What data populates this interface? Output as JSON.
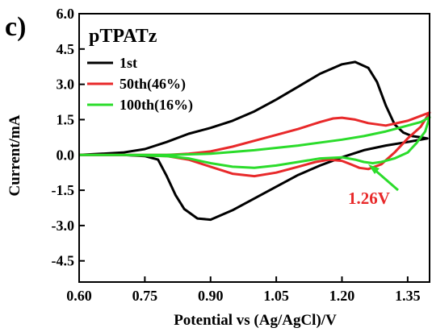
{
  "chart_data": {
    "type": "line",
    "panel_label": "c)",
    "title": "pTPATz",
    "xlabel": "Potential vs (Ag/AgCl)/V",
    "ylabel": "Current/mA",
    "xlim": [
      0.6,
      1.4
    ],
    "ylim": [
      -5.4,
      6.0
    ],
    "xticks": [
      "0.60",
      "0.75",
      "0.90",
      "1.05",
      "1.20",
      "1.35"
    ],
    "yticks": [
      "6.0",
      "4.5",
      "3.0",
      "1.5",
      "0.0",
      "-1.5",
      "-3.0",
      "-4.5"
    ],
    "legend_position": "top-left",
    "annotation": {
      "text": "1.26V",
      "x": 1.26,
      "y": -0.25,
      "color": "#e8292a"
    },
    "series": [
      {
        "name": "1st",
        "color": "#000000",
        "x": [
          0.6,
          0.7,
          0.75,
          0.8,
          0.85,
          0.9,
          0.95,
          1.0,
          1.05,
          1.1,
          1.15,
          1.2,
          1.23,
          1.26,
          1.28,
          1.3,
          1.32,
          1.34,
          1.36,
          1.38,
          1.395,
          1.38,
          1.35,
          1.3,
          1.25,
          1.2,
          1.15,
          1.1,
          1.05,
          1.0,
          0.95,
          0.9,
          0.87,
          0.84,
          0.82,
          0.8,
          0.78,
          0.75,
          0.7,
          0.6
        ],
        "y": [
          0.0,
          0.1,
          0.25,
          0.55,
          0.9,
          1.15,
          1.45,
          1.85,
          2.35,
          2.9,
          3.45,
          3.85,
          3.95,
          3.7,
          3.1,
          2.1,
          1.3,
          0.95,
          0.8,
          0.75,
          0.7,
          0.65,
          0.55,
          0.4,
          0.2,
          -0.1,
          -0.45,
          -0.85,
          -1.35,
          -1.85,
          -2.35,
          -2.75,
          -2.7,
          -2.3,
          -1.7,
          -0.9,
          -0.2,
          -0.05,
          0.0,
          0.0
        ]
      },
      {
        "name": "50th(46%)",
        "color": "#e8292a",
        "x": [
          0.6,
          0.8,
          0.85,
          0.9,
          0.95,
          1.0,
          1.05,
          1.1,
          1.15,
          1.18,
          1.2,
          1.23,
          1.26,
          1.3,
          1.35,
          1.4,
          1.38,
          1.35,
          1.32,
          1.29,
          1.26,
          1.24,
          1.22,
          1.2,
          1.17,
          1.14,
          1.1,
          1.05,
          1.0,
          0.95,
          0.9,
          0.85,
          0.8,
          0.7,
          0.6
        ],
        "y": [
          0.0,
          0.0,
          0.05,
          0.15,
          0.35,
          0.6,
          0.85,
          1.1,
          1.4,
          1.55,
          1.58,
          1.5,
          1.35,
          1.25,
          1.45,
          1.8,
          1.2,
          0.7,
          0.1,
          -0.4,
          -0.6,
          -0.55,
          -0.4,
          -0.25,
          -0.2,
          -0.3,
          -0.5,
          -0.75,
          -0.9,
          -0.8,
          -0.5,
          -0.2,
          -0.05,
          0.0,
          0.0
        ]
      },
      {
        "name": "100th(16%)",
        "color": "#2bdc2b",
        "x": [
          0.6,
          0.8,
          0.9,
          1.0,
          1.1,
          1.2,
          1.25,
          1.3,
          1.35,
          1.38,
          1.4,
          1.39,
          1.37,
          1.35,
          1.32,
          1.29,
          1.27,
          1.25,
          1.23,
          1.2,
          1.15,
          1.1,
          1.05,
          1.0,
          0.95,
          0.9,
          0.85,
          0.8,
          0.7,
          0.6
        ],
        "y": [
          0.0,
          0.0,
          0.05,
          0.2,
          0.4,
          0.65,
          0.8,
          1.0,
          1.25,
          1.4,
          1.6,
          1.0,
          0.5,
          0.1,
          -0.15,
          -0.3,
          -0.35,
          -0.3,
          -0.2,
          -0.1,
          -0.15,
          -0.3,
          -0.45,
          -0.55,
          -0.5,
          -0.35,
          -0.15,
          -0.05,
          0.0,
          0.0
        ]
      }
    ]
  }
}
